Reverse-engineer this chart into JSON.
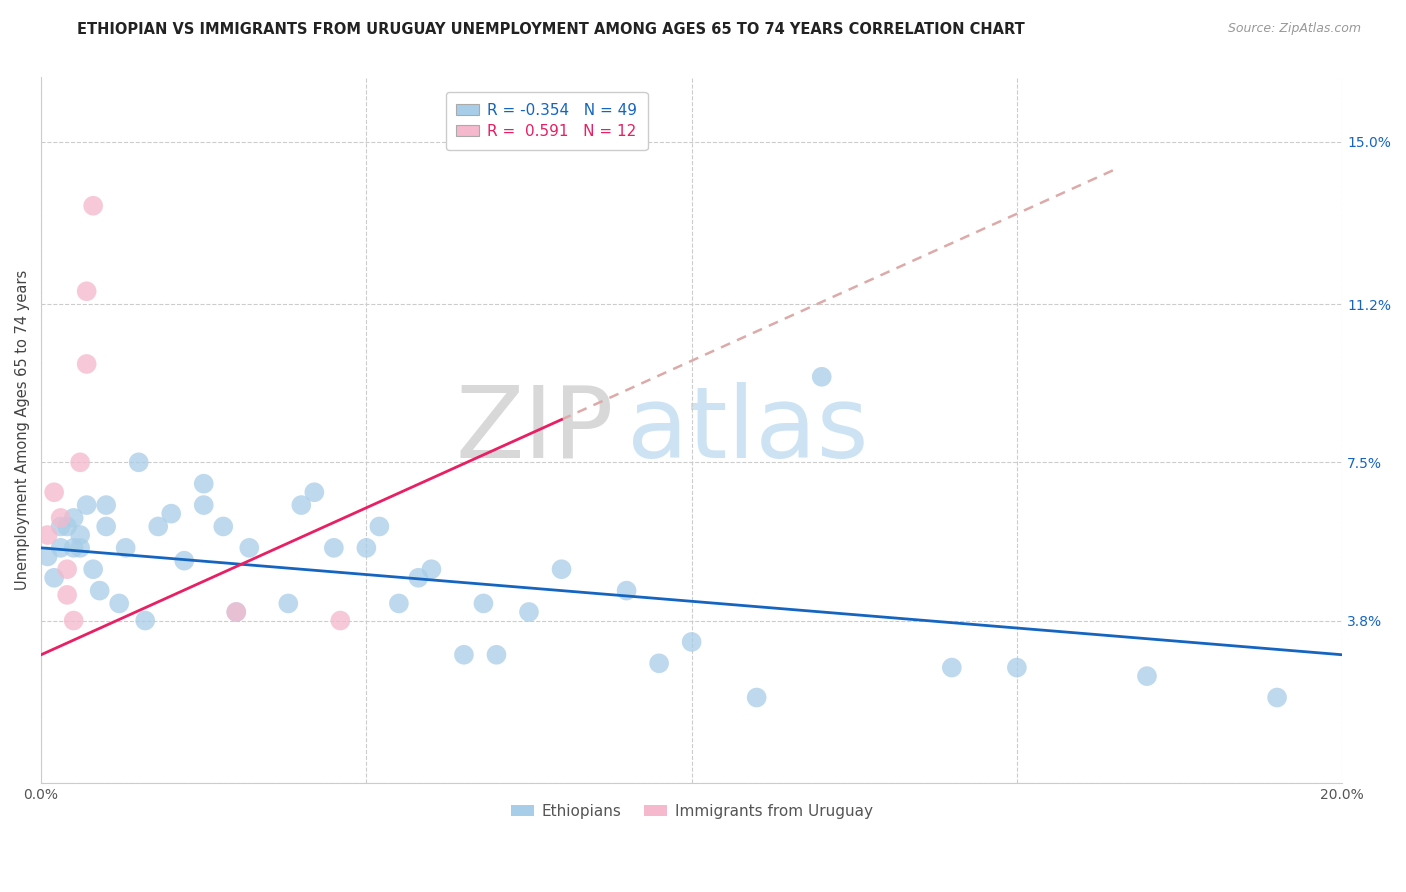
{
  "title": "ETHIOPIAN VS IMMIGRANTS FROM URUGUAY UNEMPLOYMENT AMONG AGES 65 TO 74 YEARS CORRELATION CHART",
  "source": "Source: ZipAtlas.com",
  "ylabel": "Unemployment Among Ages 65 to 74 years",
  "xlim": [
    0.0,
    0.2
  ],
  "ylim": [
    0.0,
    0.165
  ],
  "yticks_right": [
    0.0,
    0.038,
    0.075,
    0.112,
    0.15
  ],
  "ytick_right_labels": [
    "",
    "3.8%",
    "7.5%",
    "11.2%",
    "15.0%"
  ],
  "watermark_zip": "ZIP",
  "watermark_atlas": "atlas",
  "legend_blue_R": "-0.354",
  "legend_blue_N": "49",
  "legend_pink_R": "0.591",
  "legend_pink_N": "12",
  "blue_scatter_x": [
    0.001,
    0.002,
    0.003,
    0.003,
    0.004,
    0.005,
    0.005,
    0.006,
    0.006,
    0.007,
    0.008,
    0.009,
    0.01,
    0.01,
    0.012,
    0.013,
    0.015,
    0.016,
    0.018,
    0.02,
    0.022,
    0.025,
    0.025,
    0.028,
    0.03,
    0.032,
    0.038,
    0.04,
    0.042,
    0.045,
    0.05,
    0.052,
    0.055,
    0.058,
    0.06,
    0.065,
    0.068,
    0.07,
    0.075,
    0.08,
    0.09,
    0.095,
    0.1,
    0.11,
    0.12,
    0.14,
    0.15,
    0.17,
    0.19
  ],
  "blue_scatter_y": [
    0.053,
    0.048,
    0.055,
    0.06,
    0.06,
    0.055,
    0.062,
    0.055,
    0.058,
    0.065,
    0.05,
    0.045,
    0.06,
    0.065,
    0.042,
    0.055,
    0.075,
    0.038,
    0.06,
    0.063,
    0.052,
    0.065,
    0.07,
    0.06,
    0.04,
    0.055,
    0.042,
    0.065,
    0.068,
    0.055,
    0.055,
    0.06,
    0.042,
    0.048,
    0.05,
    0.03,
    0.042,
    0.03,
    0.04,
    0.05,
    0.045,
    0.028,
    0.033,
    0.02,
    0.095,
    0.027,
    0.027,
    0.025,
    0.02
  ],
  "pink_scatter_x": [
    0.001,
    0.002,
    0.003,
    0.004,
    0.004,
    0.005,
    0.006,
    0.007,
    0.007,
    0.008,
    0.03,
    0.046
  ],
  "pink_scatter_y": [
    0.058,
    0.068,
    0.062,
    0.05,
    0.044,
    0.038,
    0.075,
    0.098,
    0.115,
    0.135,
    0.04,
    0.038
  ],
  "blue_color": "#a8cde8",
  "pink_color": "#f5b8cc",
  "blue_line_color": "#1565c0",
  "pink_line_color": "#e91e63",
  "pink_line_dash_color": "#ddaaaa",
  "grid_color": "#cccccc",
  "bg_color": "#ffffff",
  "title_fontsize": 10.5,
  "source_fontsize": 9,
  "axis_label_fontsize": 10.5,
  "tick_fontsize": 10,
  "legend_fontsize": 11
}
